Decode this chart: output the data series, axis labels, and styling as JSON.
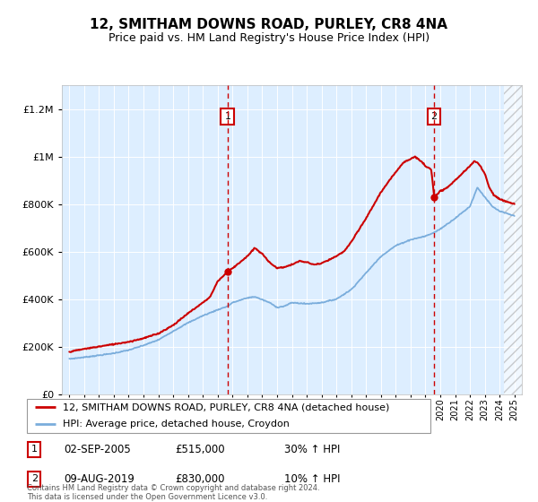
{
  "title": "12, SMITHAM DOWNS ROAD, PURLEY, CR8 4NA",
  "subtitle": "Price paid vs. HM Land Registry's House Price Index (HPI)",
  "legend_line1": "12, SMITHAM DOWNS ROAD, PURLEY, CR8 4NA (detached house)",
  "legend_line2": "HPI: Average price, detached house, Croydon",
  "sale1_date": "02-SEP-2005",
  "sale1_price": "£515,000",
  "sale1_hpi": "30% ↑ HPI",
  "sale2_date": "09-AUG-2019",
  "sale2_price": "£830,000",
  "sale2_hpi": "10% ↑ HPI",
  "footer": "Contains HM Land Registry data © Crown copyright and database right 2024.\nThis data is licensed under the Open Government Licence v3.0.",
  "red_color": "#cc0000",
  "blue_color": "#7aaddc",
  "bg_color": "#ddeeff",
  "ylim_min": 0,
  "ylim_max": 1300000,
  "sale1_year": 2005.67,
  "sale1_value": 515000,
  "sale2_year": 2019.58,
  "sale2_value": 830000,
  "xmin": 1995,
  "xmax": 2025
}
